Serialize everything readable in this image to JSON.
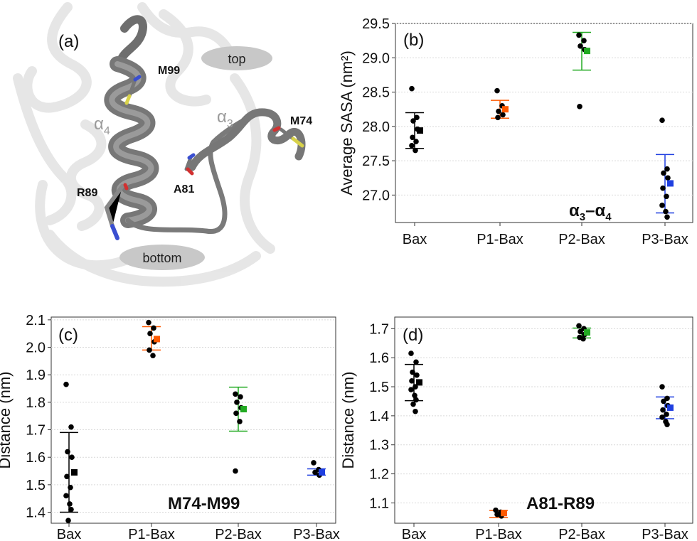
{
  "panels": {
    "a": {
      "tag": "(a)",
      "residues": [
        "M99",
        "M74",
        "A81",
        "R89"
      ],
      "helix_labels": [
        {
          "base": "α",
          "sub": "4"
        },
        {
          "base": "α",
          "sub": "3"
        }
      ],
      "regions": [
        "top",
        "bottom"
      ]
    }
  },
  "chart_data": [
    {
      "id": "b",
      "type": "scatter",
      "tag": "(b)",
      "annotation": {
        "base1": "α",
        "sub1": "3",
        "dash": "–",
        "base2": "α",
        "sub2": "4"
      },
      "ylabel": "Average SASA (nm²)",
      "xlabel": "",
      "categories": [
        "Bax",
        "P1-Bax",
        "P2-Bax",
        "P3-Bax"
      ],
      "colors": [
        "#000000",
        "#ff5a00",
        "#22aa22",
        "#1f3fe0"
      ],
      "ylim": [
        26.6,
        29.5
      ],
      "yticks": [
        "29.5",
        "29.0",
        "28.5",
        "28.0",
        "27.5",
        "27.0"
      ],
      "ytick_values": [
        29.5,
        29.0,
        28.5,
        28.0,
        27.5,
        27.0
      ],
      "grid": true,
      "means": [
        27.94,
        28.25,
        29.1,
        27.17
      ],
      "error": [
        [
          27.68,
          28.2
        ],
        [
          28.12,
          28.38
        ],
        [
          28.82,
          29.37
        ],
        [
          26.74,
          27.59
        ]
      ],
      "points": [
        [
          28.55,
          28.13,
          28.08,
          27.96,
          27.84,
          27.78,
          27.72,
          27.65
        ],
        [
          28.52,
          28.3,
          28.22,
          28.17,
          28.13
        ],
        [
          29.33,
          29.25,
          29.17,
          29.12,
          28.29
        ],
        [
          28.09,
          27.38,
          27.32,
          27.25,
          27.1,
          26.98,
          26.85,
          26.76,
          26.68
        ]
      ]
    },
    {
      "id": "c",
      "type": "scatter",
      "tag": "(c)",
      "annotation_text": "M74-M99",
      "ylabel": "Distance (nm)",
      "xlabel": "",
      "categories": [
        "Bax",
        "P1-Bax",
        "P2-Bax",
        "P3-Bax"
      ],
      "colors": [
        "#000000",
        "#ff5a00",
        "#22aa22",
        "#1f3fe0"
      ],
      "ylim": [
        1.36,
        2.11
      ],
      "yticks": [
        "2.1",
        "2.0",
        "1.9",
        "1.8",
        "1.7",
        "1.6",
        "1.5",
        "1.4"
      ],
      "ytick_values": [
        2.1,
        2.0,
        1.9,
        1.8,
        1.7,
        1.6,
        1.5,
        1.4
      ],
      "grid": true,
      "means": [
        1.545,
        2.03,
        1.775,
        1.545
      ],
      "error": [
        [
          1.4,
          1.69
        ],
        [
          1.99,
          2.075
        ],
        [
          1.695,
          1.855
        ],
        [
          1.535,
          1.558
        ]
      ],
      "points": [
        [
          1.865,
          1.71,
          1.62,
          1.6,
          1.53,
          1.49,
          1.46,
          1.43,
          1.41,
          1.37
        ],
        [
          2.09,
          2.07,
          2.05,
          2.02,
          1.99,
          1.97
        ],
        [
          1.83,
          1.82,
          1.8,
          1.78,
          1.76,
          1.73,
          1.55
        ],
        [
          1.58,
          1.555,
          1.545,
          1.535
        ]
      ]
    },
    {
      "id": "d",
      "type": "scatter",
      "tag": "(d)",
      "annotation_text": "A81-R89",
      "ylabel": "Distance (nm)",
      "xlabel": "",
      "categories": [
        "Bax",
        "P1-Bax",
        "P2-Bax",
        "P3-Bax"
      ],
      "colors": [
        "#000000",
        "#ff5a00",
        "#22aa22",
        "#1f3fe0"
      ],
      "ylim": [
        1.03,
        1.74
      ],
      "yticks": [
        "1.7",
        "1.6",
        "1.5",
        "1.4",
        "1.3",
        "1.2",
        "1.1"
      ],
      "ytick_values": [
        1.7,
        1.6,
        1.5,
        1.4,
        1.3,
        1.2,
        1.1
      ],
      "grid": true,
      "means": [
        1.515,
        1.065,
        1.687,
        1.428
      ],
      "error": [
        [
          1.452,
          1.577
        ],
        [
          1.05,
          1.074
        ],
        [
          1.668,
          1.702
        ],
        [
          1.39,
          1.465
        ]
      ],
      "points": [
        [
          1.615,
          1.585,
          1.55,
          1.54,
          1.52,
          1.5,
          1.49,
          1.47,
          1.455,
          1.44,
          1.415
        ],
        [
          1.075,
          1.068,
          1.06,
          1.055
        ],
        [
          1.71,
          1.7,
          1.69,
          1.68,
          1.67,
          1.665
        ],
        [
          1.5,
          1.46,
          1.45,
          1.435,
          1.42,
          1.405,
          1.395,
          1.38,
          1.37
        ]
      ]
    }
  ]
}
